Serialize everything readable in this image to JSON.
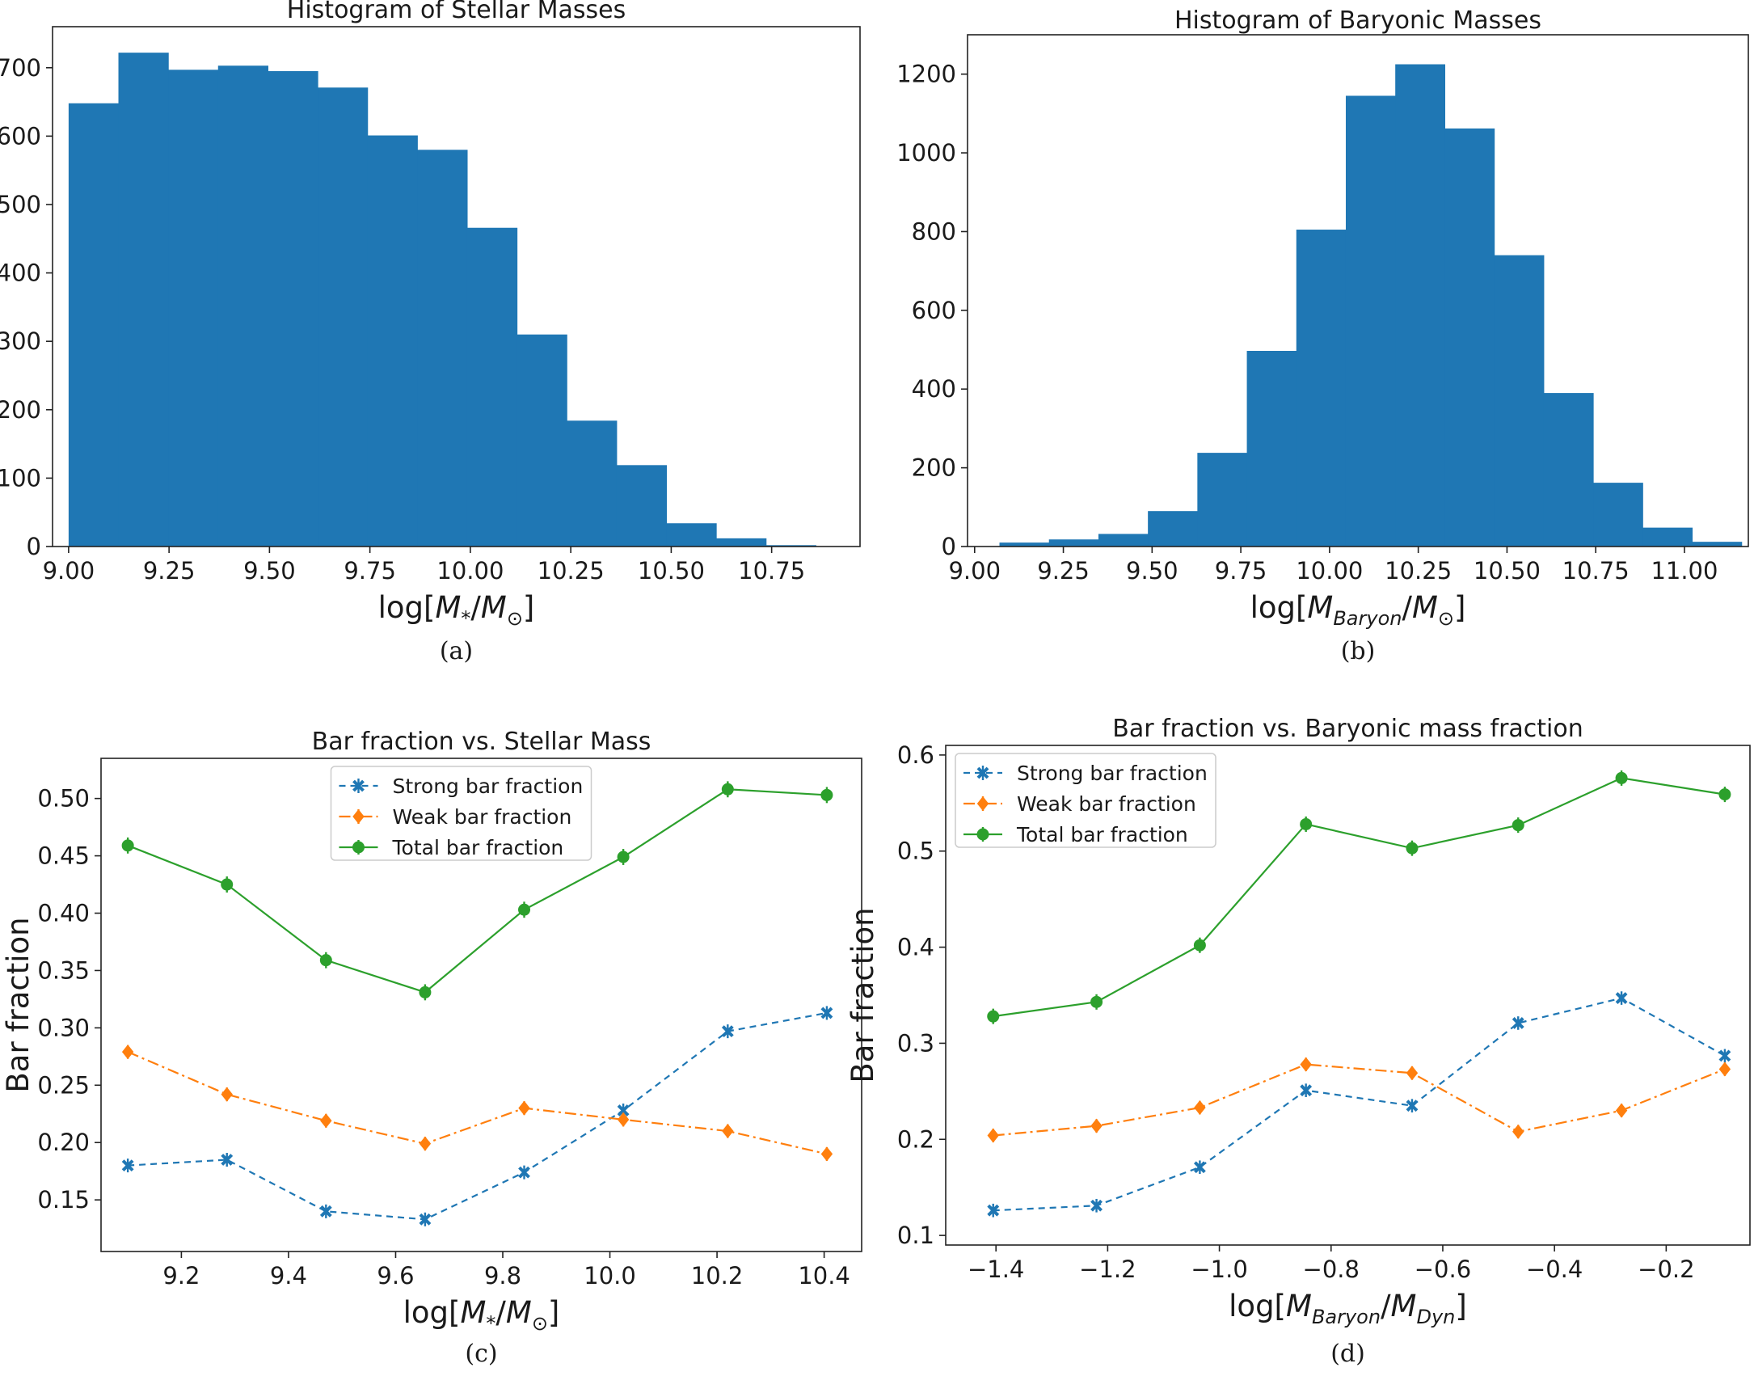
{
  "chart_data": [
    {
      "type": "bar",
      "title": "Histogram of Stellar Masses",
      "xlabel": "log[M_*/M_⊙]",
      "caption": "(a)",
      "xlim": [
        8.96,
        10.97
      ],
      "ylim": [
        0,
        760
      ],
      "xticks": [
        "9.00",
        "9.25",
        "9.50",
        "9.75",
        "10.00",
        "10.25",
        "10.50",
        "10.75"
      ],
      "yticks": [
        "0",
        "100",
        "200",
        "300",
        "400",
        "500",
        "600",
        "700"
      ],
      "bin_edges": [
        9.0,
        9.124,
        9.248,
        9.372,
        9.496,
        9.62,
        9.744,
        9.868,
        9.992,
        10.116,
        10.24,
        10.364,
        10.488,
        10.612,
        10.736,
        10.86
      ],
      "values": [
        648,
        722,
        697,
        703,
        695,
        671,
        601,
        580,
        466,
        310,
        184,
        119,
        34,
        12,
        2
      ],
      "color": "#1f77b4"
    },
    {
      "type": "bar",
      "title": "Histogram of Baryonic Masses",
      "xlabel": "log[M_Baryon/M_⊙]",
      "caption": "(b)",
      "xlim": [
        8.98,
        11.18
      ],
      "ylim": [
        0,
        1300
      ],
      "xticks": [
        "9.00",
        "9.25",
        "9.50",
        "9.75",
        "10.00",
        "10.25",
        "10.50",
        "10.75",
        "11.00"
      ],
      "yticks": [
        "0",
        "200",
        "400",
        "600",
        "800",
        "1000",
        "1200"
      ],
      "bin_edges": [
        9.07,
        9.2094,
        9.3488,
        9.4882,
        9.6276,
        9.767,
        9.9064,
        10.0458,
        10.1852,
        10.3246,
        10.464,
        10.6034,
        10.7428,
        10.8822,
        11.0216,
        11.161
      ],
      "values": [
        10,
        18,
        32,
        90,
        238,
        497,
        805,
        1145,
        1225,
        1062,
        740,
        390,
        162,
        48,
        12
      ],
      "color": "#1f77b4"
    },
    {
      "type": "line",
      "title": "Bar fraction vs. Stellar Mass",
      "xlabel": "log[M_*/M_⊙]",
      "ylabel": "Bar fraction",
      "caption": "(c)",
      "xlim": [
        9.05,
        10.47
      ],
      "ylim": [
        0.105,
        0.535
      ],
      "xticks": [
        "9.2",
        "9.4",
        "9.6",
        "9.8",
        "10.0",
        "10.2",
        "10.4"
      ],
      "yticks": [
        "0.15",
        "0.20",
        "0.25",
        "0.30",
        "0.35",
        "0.40",
        "0.45",
        "0.50"
      ],
      "legend": "top-center",
      "x": [
        9.1,
        9.285,
        9.47,
        9.655,
        9.84,
        10.025,
        10.22,
        10.405
      ],
      "series": [
        {
          "name": "Strong bar fraction",
          "values": [
            0.18,
            0.185,
            0.14,
            0.133,
            0.174,
            0.228,
            0.297,
            0.313
          ],
          "error": 0.006,
          "color": "#1f77b4",
          "dash": "8 6",
          "marker": "x"
        },
        {
          "name": "Weak bar fraction",
          "values": [
            0.279,
            0.242,
            0.219,
            0.199,
            0.23,
            0.22,
            0.21,
            0.19
          ],
          "error": 0.006,
          "color": "#ff7f0e",
          "dash": "14 5 3 5",
          "marker": "diamond"
        },
        {
          "name": "Total bar fraction",
          "values": [
            0.459,
            0.425,
            0.359,
            0.331,
            0.403,
            0.449,
            0.508,
            0.503
          ],
          "error": 0.007,
          "color": "#2ca02c",
          "dash": "",
          "marker": "circle"
        }
      ]
    },
    {
      "type": "line",
      "title": "Bar fraction vs. Baryonic mass fraction",
      "xlabel": "log[M_Baryon/M_Dyn]",
      "ylabel": "Bar fraction",
      "caption": "(d)",
      "xlim": [
        -1.49,
        -0.05
      ],
      "ylim": [
        0.09,
        0.61
      ],
      "xticks": [
        "−1.4",
        "−1.2",
        "−1.0",
        "−0.8",
        "−0.6",
        "−0.4",
        "−0.2"
      ],
      "yticks": [
        "0.1",
        "0.2",
        "0.3",
        "0.4",
        "0.5",
        "0.6"
      ],
      "legend": "top-left",
      "x": [
        -1.405,
        -1.22,
        -1.035,
        -0.845,
        -0.655,
        -0.465,
        -0.28,
        -0.095
      ],
      "series": [
        {
          "name": "Strong bar fraction",
          "values": [
            0.126,
            0.131,
            0.171,
            0.251,
            0.235,
            0.321,
            0.347,
            0.287
          ],
          "error": 0.007,
          "color": "#1f77b4",
          "dash": "8 6",
          "marker": "x"
        },
        {
          "name": "Weak bar fraction",
          "values": [
            0.204,
            0.214,
            0.233,
            0.278,
            0.269,
            0.208,
            0.23,
            0.273
          ],
          "error": 0.007,
          "color": "#ff7f0e",
          "dash": "14 5 3 5",
          "marker": "diamond"
        },
        {
          "name": "Total bar fraction",
          "values": [
            0.328,
            0.343,
            0.402,
            0.528,
            0.503,
            0.527,
            0.576,
            0.559
          ],
          "error": 0.008,
          "color": "#2ca02c",
          "dash": "",
          "marker": "circle"
        }
      ]
    }
  ]
}
